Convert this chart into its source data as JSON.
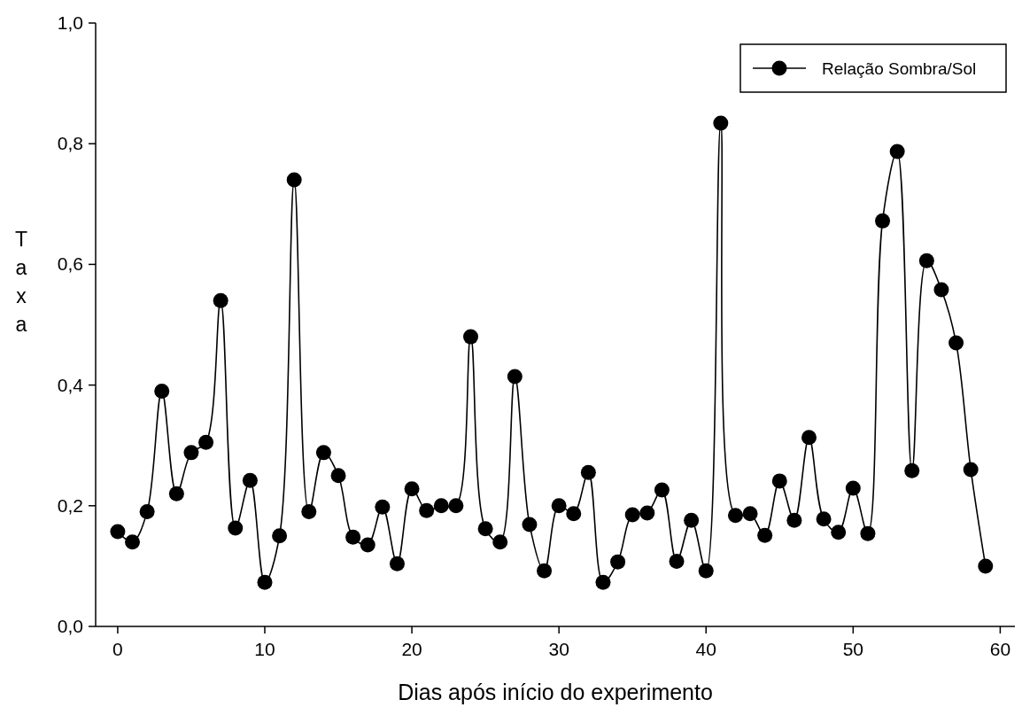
{
  "chart_data": {
    "type": "line",
    "xlabel": "Dias após início do experimento",
    "ylabel": "Taxa",
    "x": [
      0,
      1,
      2,
      3,
      4,
      5,
      6,
      7,
      8,
      9,
      10,
      11,
      12,
      13,
      14,
      15,
      16,
      17,
      18,
      19,
      20,
      21,
      22,
      23,
      24,
      25,
      26,
      27,
      28,
      29,
      30,
      31,
      32,
      33,
      34,
      35,
      36,
      37,
      38,
      39,
      40,
      41,
      42,
      43,
      44,
      45,
      46,
      47,
      48,
      49,
      50,
      51,
      52,
      53,
      54,
      55,
      56,
      57,
      58,
      59
    ],
    "series": [
      {
        "name": "Relação Sombra/Sol",
        "color": "#000000",
        "values": [
          0.157,
          0.14,
          0.19,
          0.39,
          0.22,
          0.288,
          0.305,
          0.54,
          0.163,
          0.242,
          0.073,
          0.15,
          0.74,
          0.19,
          0.288,
          0.25,
          0.148,
          0.135,
          0.198,
          0.104,
          0.228,
          0.192,
          0.2,
          0.2,
          0.48,
          0.162,
          0.14,
          0.414,
          0.169,
          0.092,
          0.2,
          0.187,
          0.255,
          0.073,
          0.107,
          0.185,
          0.188,
          0.226,
          0.108,
          0.176,
          0.092,
          0.834,
          0.184,
          0.187,
          0.151,
          0.241,
          0.176,
          0.313,
          0.178,
          0.156,
          0.229,
          0.154,
          0.672,
          0.787,
          0.258,
          0.606,
          0.558,
          0.47,
          0.26,
          0.1
        ]
      }
    ],
    "xlim": [
      -1.5,
      61
    ],
    "ylim": [
      0,
      1
    ],
    "xticks": [
      0,
      10,
      20,
      30,
      40,
      50,
      60
    ],
    "yticks": [
      {
        "value": 0,
        "label": "0,0"
      },
      {
        "value": 0.2,
        "label": "0,2"
      },
      {
        "value": 0.4,
        "label": "0,4"
      },
      {
        "value": 0.6,
        "label": "0,6"
      },
      {
        "value": 0.8,
        "label": "0,8"
      },
      {
        "value": 1,
        "label": "1,0"
      }
    ],
    "legend": "top right",
    "marker": "circle",
    "line_style": "solid",
    "grid": false
  }
}
